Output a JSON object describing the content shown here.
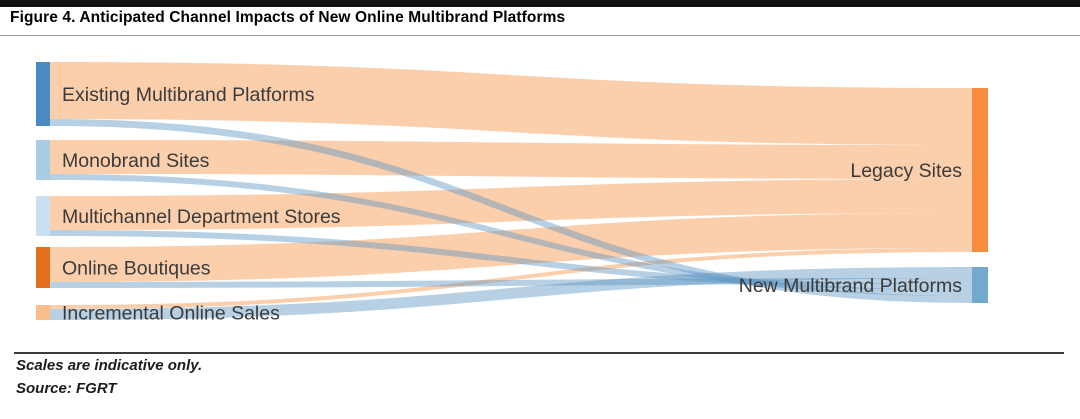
{
  "header": {
    "title": "Figure 4. Anticipated Channel Impacts of New Online Multibrand Platforms"
  },
  "chart_data": {
    "type": "sankey",
    "title": "Figure 4. Anticipated Channel Impacts of New Online Multibrand Platforms",
    "orientation": "left-to-right",
    "colors": {
      "flow_orange": "rgba(247,158,90,0.5)",
      "flow_blue": "rgba(96,150,196,0.45)",
      "label_text": "#3b3b3b"
    },
    "left_nodes": [
      {
        "id": "existing",
        "label": "Existing Multibrand Platforms",
        "color": "#4A8BC2"
      },
      {
        "id": "monobrand",
        "label": "Monobrand Sites",
        "color": "#A9CCE5"
      },
      {
        "id": "multichannel",
        "label": "Multichannel Department Stores",
        "color": "#CADFF0"
      },
      {
        "id": "boutiques",
        "label": "Online Boutiques",
        "color": "#E2701C"
      },
      {
        "id": "incremental",
        "label": "Incremental Online Sales",
        "color": "#F9BE8C"
      }
    ],
    "right_nodes": [
      {
        "id": "legacy",
        "label": "Legacy Sites",
        "color": "#F78E3D"
      },
      {
        "id": "nmp",
        "label": "New Multibrand Platforms",
        "color": "#72A9CD"
      }
    ],
    "links": [
      {
        "source": "existing",
        "target": "legacy",
        "value": 57,
        "color": "orange"
      },
      {
        "source": "existing",
        "target": "nmp",
        "value": 7,
        "color": "blue"
      },
      {
        "source": "monobrand",
        "target": "legacy",
        "value": 34,
        "color": "orange"
      },
      {
        "source": "monobrand",
        "target": "nmp",
        "value": 6,
        "color": "blue"
      },
      {
        "source": "multichannel",
        "target": "legacy",
        "value": 34,
        "color": "orange"
      },
      {
        "source": "multichannel",
        "target": "nmp",
        "value": 6,
        "color": "blue"
      },
      {
        "source": "boutiques",
        "target": "legacy",
        "value": 35,
        "color": "orange"
      },
      {
        "source": "boutiques",
        "target": "nmp",
        "value": 6,
        "color": "blue"
      },
      {
        "source": "incremental",
        "target": "legacy",
        "value": 4,
        "color": "orange"
      },
      {
        "source": "incremental",
        "target": "nmp",
        "value": 11,
        "color": "blue"
      }
    ]
  },
  "footer": {
    "note": "Scales are indicative only.",
    "source": "Source: FGRT"
  }
}
